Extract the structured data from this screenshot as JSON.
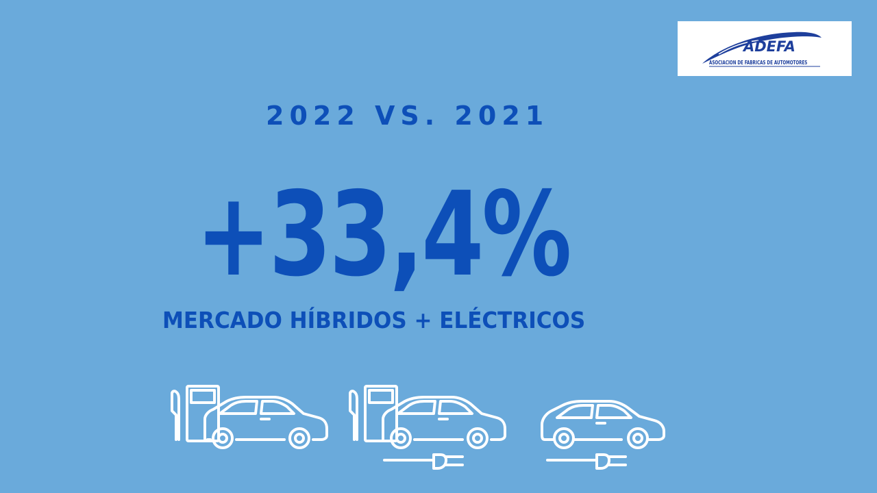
{
  "logo": {
    "name": "ADEFA",
    "tagline": "ASOCIACION DE FABRICAS DE AUTOMOTORES"
  },
  "headline": {
    "comparison": "2022 VS. 2021",
    "value": "+33,4%",
    "subtitle": "MERCADO HÍBRIDOS + ELÉCTRICOS"
  },
  "icons": [
    {
      "name": "fuel-pump-car-icon"
    },
    {
      "name": "plugin-hybrid-car-icon"
    },
    {
      "name": "electric-car-icon"
    }
  ],
  "colors": {
    "background": "#6aaadb",
    "text": "#0d4fb8",
    "logo": "#1e3f9c",
    "icon_stroke": "#ffffff"
  }
}
